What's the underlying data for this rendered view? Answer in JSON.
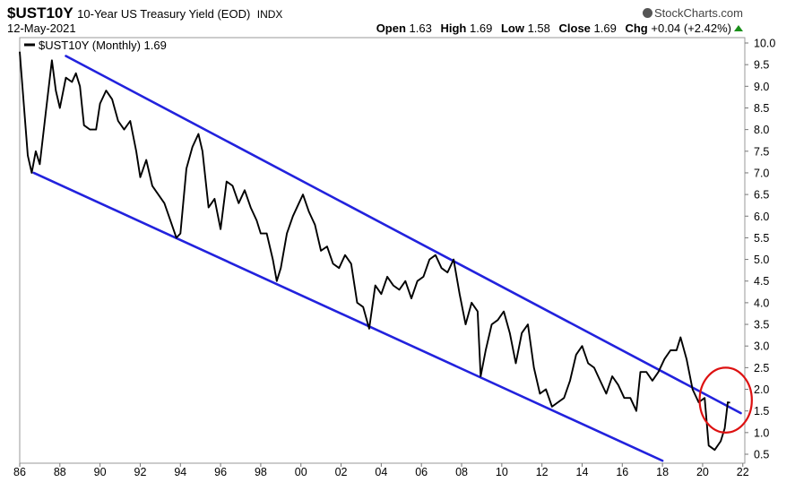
{
  "header": {
    "symbol": "$UST10Y",
    "description": "10-Year US Treasury Yield (EOD)",
    "exchange": "INDX",
    "brand": "StockCharts.com",
    "brand_icon": "copyright-icon",
    "date": "12-May-2021",
    "open_label": "Open",
    "open": "1.63",
    "high_label": "High",
    "high": "1.69",
    "low_label": "Low",
    "low": "1.58",
    "close_label": "Close",
    "close": "1.69",
    "chg_label": "Chg",
    "chg": "+0.04 (+2.42%)",
    "chg_icon": "up-arrow-icon",
    "chg_color": "#1a8f1a"
  },
  "chart_data": {
    "type": "line",
    "legend": "$UST10Y (Monthly) 1.69",
    "x_tick_labels": [
      "86",
      "88",
      "90",
      "92",
      "94",
      "96",
      "98",
      "00",
      "02",
      "04",
      "06",
      "08",
      "10",
      "12",
      "14",
      "16",
      "18",
      "20",
      "22"
    ],
    "y_tick_labels": [
      "10.0",
      "9.5",
      "9.0",
      "8.5",
      "8.0",
      "7.5",
      "7.0",
      "6.5",
      "6.0",
      "5.5",
      "5.0",
      "4.5",
      "4.0",
      "3.5",
      "3.0",
      "2.5",
      "2.0",
      "1.5",
      "1.0",
      "0.5"
    ],
    "xlim": [
      1986,
      2022.1
    ],
    "ylim": [
      0.3,
      10.1
    ],
    "series": [
      {
        "color": "#000000",
        "x": [
          1986.0,
          1986.2,
          1986.4,
          1986.6,
          1986.8,
          1987.0,
          1987.3,
          1987.6,
          1987.8,
          1988.0,
          1988.3,
          1988.6,
          1988.8,
          1989.0,
          1989.2,
          1989.5,
          1989.8,
          1990.0,
          1990.3,
          1990.6,
          1990.9,
          1991.2,
          1991.5,
          1991.8,
          1992.0,
          1992.3,
          1992.6,
          1992.9,
          1993.2,
          1993.5,
          1993.8,
          1994.0,
          1994.3,
          1994.6,
          1994.9,
          1995.1,
          1995.4,
          1995.7,
          1996.0,
          1996.3,
          1996.6,
          1996.9,
          1997.2,
          1997.5,
          1997.8,
          1998.0,
          1998.3,
          1998.6,
          1998.8,
          1999.0,
          1999.3,
          1999.6,
          1999.9,
          2000.1,
          2000.4,
          2000.7,
          2001.0,
          2001.3,
          2001.6,
          2001.9,
          2002.2,
          2002.5,
          2002.8,
          2003.1,
          2003.4,
          2003.7,
          2004.0,
          2004.3,
          2004.6,
          2004.9,
          2005.2,
          2005.5,
          2005.8,
          2006.1,
          2006.4,
          2006.7,
          2007.0,
          2007.3,
          2007.6,
          2007.9,
          2008.2,
          2008.5,
          2008.8,
          2008.95,
          2009.2,
          2009.5,
          2009.8,
          2010.1,
          2010.4,
          2010.7,
          2011.0,
          2011.3,
          2011.6,
          2011.9,
          2012.2,
          2012.5,
          2012.8,
          2013.1,
          2013.4,
          2013.7,
          2014.0,
          2014.3,
          2014.6,
          2014.9,
          2015.2,
          2015.5,
          2015.8,
          2016.1,
          2016.4,
          2016.7,
          2016.9,
          2017.2,
          2017.5,
          2017.8,
          2018.1,
          2018.4,
          2018.7,
          2018.9,
          2019.2,
          2019.5,
          2019.8,
          2020.1,
          2020.3,
          2020.6,
          2020.9,
          2021.1,
          2021.25,
          2021.37
        ],
        "y": [
          9.8,
          8.6,
          7.4,
          7.0,
          7.5,
          7.2,
          8.4,
          9.6,
          8.9,
          8.5,
          9.2,
          9.1,
          9.3,
          9.0,
          8.1,
          8.0,
          8.0,
          8.6,
          8.9,
          8.7,
          8.2,
          8.0,
          8.2,
          7.5,
          6.9,
          7.3,
          6.7,
          6.5,
          6.3,
          5.9,
          5.5,
          5.6,
          7.1,
          7.6,
          7.9,
          7.5,
          6.2,
          6.4,
          5.7,
          6.8,
          6.7,
          6.3,
          6.6,
          6.2,
          5.9,
          5.6,
          5.6,
          5.0,
          4.5,
          4.8,
          5.6,
          6.0,
          6.3,
          6.5,
          6.1,
          5.8,
          5.2,
          5.3,
          4.9,
          4.8,
          5.1,
          4.9,
          4.0,
          3.9,
          3.4,
          4.4,
          4.2,
          4.6,
          4.4,
          4.3,
          4.5,
          4.1,
          4.5,
          4.6,
          5.0,
          5.1,
          4.8,
          4.7,
          5.0,
          4.2,
          3.5,
          4.0,
          3.8,
          2.3,
          2.9,
          3.5,
          3.6,
          3.8,
          3.3,
          2.6,
          3.3,
          3.5,
          2.5,
          1.9,
          2.0,
          1.6,
          1.7,
          1.8,
          2.2,
          2.8,
          3.0,
          2.6,
          2.5,
          2.2,
          1.9,
          2.3,
          2.1,
          1.8,
          1.8,
          1.5,
          2.4,
          2.4,
          2.2,
          2.4,
          2.7,
          2.9,
          2.9,
          3.2,
          2.7,
          2.0,
          1.7,
          1.8,
          0.7,
          0.6,
          0.8,
          1.1,
          1.7,
          1.69
        ]
      }
    ],
    "trendlines": [
      {
        "color": "#2222dd",
        "x": [
          1988.3,
          2021.9
        ],
        "y": [
          9.7,
          1.45
        ]
      },
      {
        "color": "#2222dd",
        "x": [
          1986.7,
          2018.0
        ],
        "y": [
          7.0,
          0.35
        ]
      }
    ],
    "annotations": [
      {
        "shape": "ellipse",
        "color": "#dd1111",
        "center_x": 2021.15,
        "center_y": 1.75,
        "radius_x": 1.3,
        "radius_y": 0.75
      }
    ],
    "grid": false
  }
}
